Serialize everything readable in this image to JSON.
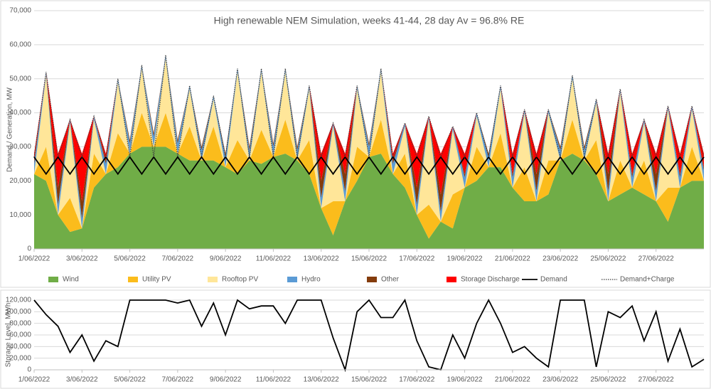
{
  "chart_data": [
    {
      "type": "area",
      "stacked": true,
      "title": "High renewable NEM Simulation, weeks 41-44, 28 day Av = 96.8% RE",
      "y_label": "Demand / Generation, MW",
      "grid": true,
      "legend": "bottom",
      "x": [
        0,
        0.5,
        1,
        1.5,
        2,
        2.5,
        3,
        3.5,
        4,
        4.5,
        5,
        5.5,
        6,
        6.5,
        7,
        7.5,
        8,
        8.5,
        9,
        9.5,
        10,
        10.5,
        11,
        11.5,
        12,
        12.5,
        13,
        13.5,
        14,
        14.5,
        15,
        15.5,
        16,
        16.5,
        17,
        17.5,
        18,
        18.5,
        19,
        19.5,
        20,
        20.5,
        21,
        21.5,
        22,
        22.5,
        23,
        23.5,
        24,
        24.5,
        25,
        25.5,
        26,
        26.5,
        27,
        27.5,
        28
      ],
      "xlim": [
        0,
        28
      ],
      "xticks": [
        {
          "value": 0,
          "label": "1/06/2022"
        },
        {
          "value": 2,
          "label": "3/06/2022"
        },
        {
          "value": 4,
          "label": "5/06/2022"
        },
        {
          "value": 6,
          "label": "7/06/2022"
        },
        {
          "value": 8,
          "label": "9/06/2022"
        },
        {
          "value": 10,
          "label": "11/06/2022"
        },
        {
          "value": 12,
          "label": "13/06/2022"
        },
        {
          "value": 14,
          "label": "15/06/2022"
        },
        {
          "value": 16,
          "label": "17/06/2022"
        },
        {
          "value": 18,
          "label": "19/06/2022"
        },
        {
          "value": 20,
          "label": "21/06/2022"
        },
        {
          "value": 22,
          "label": "23/06/2022"
        },
        {
          "value": 24,
          "label": "25/06/2022"
        },
        {
          "value": 26,
          "label": "27/06/2022"
        }
      ],
      "ylim": [
        0,
        70000
      ],
      "yticks": [
        0,
        {
          "value": 10000,
          "label": "10,000"
        },
        {
          "value": 20000,
          "label": "20,000"
        },
        {
          "value": 30000,
          "label": "30,000"
        },
        {
          "value": 40000,
          "label": "40,000"
        },
        {
          "value": 50000,
          "label": "50,000"
        },
        {
          "value": 60000,
          "label": "60,000"
        },
        {
          "value": 70000,
          "label": "70,000"
        }
      ],
      "series": [
        {
          "name": "Wind",
          "color": "#70ad47",
          "values": [
            22000,
            20000,
            10000,
            5000,
            6000,
            18000,
            22000,
            24000,
            28000,
            30000,
            30000,
            30000,
            28000,
            26000,
            26000,
            26000,
            24000,
            22000,
            26000,
            25000,
            27000,
            28000,
            26000,
            22000,
            12000,
            4000,
            14000,
            20000,
            27000,
            28000,
            22000,
            18000,
            10000,
            3000,
            8000,
            6000,
            18000,
            20000,
            24000,
            24000,
            18000,
            14000,
            14000,
            16000,
            26000,
            28000,
            26000,
            22000,
            14000,
            16000,
            18000,
            16000,
            14000,
            8000,
            18000,
            20000,
            20000
          ]
        },
        {
          "name": "Utility PV",
          "color": "#fbbc1c",
          "values": [
            0,
            10000,
            0,
            10000,
            0,
            10000,
            0,
            10000,
            0,
            10000,
            0,
            10000,
            0,
            10000,
            0,
            10000,
            0,
            10000,
            0,
            10000,
            0,
            10000,
            0,
            10000,
            0,
            10000,
            0,
            10000,
            0,
            10000,
            0,
            10000,
            0,
            10000,
            0,
            10000,
            0,
            10000,
            0,
            10000,
            0,
            10000,
            0,
            10000,
            0,
            10000,
            0,
            10000,
            0,
            10000,
            0,
            10000,
            0,
            10000,
            0,
            10000,
            0
          ]
        },
        {
          "name": "Rooftop PV",
          "color": "#ffe699",
          "values": [
            0,
            21000,
            0,
            22000,
            0,
            10000,
            0,
            15000,
            0,
            13000,
            0,
            16000,
            0,
            11000,
            0,
            8000,
            0,
            20000,
            0,
            17000,
            0,
            14000,
            0,
            15000,
            0,
            22000,
            0,
            17000,
            0,
            14000,
            0,
            8000,
            0,
            25000,
            0,
            19000,
            0,
            9000,
            0,
            13000,
            0,
            16000,
            0,
            14000,
            0,
            12000,
            0,
            11000,
            0,
            20000,
            0,
            11000,
            0,
            23000,
            0,
            11000,
            0
          ]
        },
        {
          "name": "Hydro",
          "color": "#5b9bd5",
          "values": [
            3000,
            1000,
            3000,
            1000,
            3000,
            1000,
            3000,
            1000,
            3000,
            1000,
            3000,
            1000,
            3000,
            1000,
            3000,
            1000,
            3000,
            1000,
            3000,
            1000,
            3000,
            1000,
            3000,
            1000,
            3000,
            1000,
            3000,
            1000,
            3000,
            1000,
            3000,
            1000,
            3000,
            1000,
            3000,
            1000,
            3000,
            1000,
            3000,
            1000,
            3000,
            1000,
            3000,
            1000,
            3000,
            1000,
            3000,
            1000,
            3000,
            1000,
            3000,
            1000,
            3000,
            1000,
            3000,
            1000,
            3000
          ]
        },
        {
          "name": "Other",
          "color": "#843c0c",
          "values": [
            1000,
            0,
            5000,
            0,
            5000,
            0,
            1000,
            0,
            1000,
            0,
            1000,
            0,
            1000,
            0,
            1000,
            0,
            1000,
            0,
            1000,
            0,
            1000,
            0,
            1000,
            0,
            5000,
            0,
            5000,
            0,
            1000,
            0,
            1000,
            0,
            5000,
            0,
            5000,
            0,
            1000,
            0,
            1000,
            0,
            1000,
            0,
            5000,
            0,
            1000,
            0,
            1000,
            0,
            5000,
            0,
            1000,
            0,
            5000,
            0,
            1000,
            0,
            1000
          ]
        },
        {
          "name": "Storage Discharge",
          "color": "#ff0000",
          "values": [
            2000,
            0,
            10000,
            0,
            14000,
            0,
            2000,
            0,
            0,
            0,
            0,
            0,
            0,
            0,
            0,
            0,
            0,
            0,
            0,
            0,
            0,
            0,
            0,
            0,
            8000,
            0,
            6000,
            0,
            0,
            0,
            2000,
            0,
            10000,
            0,
            12000,
            0,
            6000,
            0,
            0,
            0,
            6000,
            0,
            6000,
            0,
            0,
            0,
            0,
            0,
            6000,
            0,
            6000,
            0,
            6000,
            0,
            6000,
            0,
            4000
          ]
        },
        {
          "name": "Demand",
          "color": "#000000",
          "kind": "line",
          "values": [
            27000,
            22000,
            27000,
            22000,
            27000,
            22000,
            27000,
            22000,
            27000,
            22000,
            27000,
            22000,
            27000,
            22000,
            27000,
            22000,
            27000,
            22000,
            27000,
            22000,
            27000,
            22000,
            27000,
            22000,
            27000,
            22000,
            27000,
            22000,
            27000,
            22000,
            27000,
            22000,
            27000,
            22000,
            27000,
            22000,
            27000,
            22000,
            27000,
            22000,
            27000,
            22000,
            27000,
            22000,
            27000,
            22000,
            27000,
            22000,
            27000,
            22000,
            27000,
            22000,
            27000,
            22000,
            27000,
            22000,
            27000
          ]
        },
        {
          "name": "Demand+Charge",
          "color": "#404040",
          "kind": "line",
          "style": "dotted",
          "values": [
            27000,
            52000,
            27000,
            38000,
            27000,
            39000,
            27000,
            50000,
            27000,
            54000,
            27000,
            57000,
            27000,
            48000,
            27000,
            45000,
            27000,
            53000,
            27000,
            53000,
            27000,
            53000,
            27000,
            48000,
            27000,
            37000,
            27000,
            48000,
            27000,
            53000,
            27000,
            37000,
            27000,
            39000,
            27000,
            36000,
            27000,
            40000,
            27000,
            48000,
            27000,
            41000,
            27000,
            41000,
            27000,
            51000,
            27000,
            44000,
            27000,
            47000,
            27000,
            38000,
            27000,
            42000,
            27000,
            42000,
            27000
          ]
        }
      ]
    },
    {
      "type": "line",
      "y_label": "Storage Level, MWh",
      "grid": true,
      "x": [
        0,
        0.5,
        1,
        1.5,
        2,
        2.5,
        3,
        3.5,
        4,
        4.5,
        5,
        5.5,
        6,
        6.5,
        7,
        7.5,
        8,
        8.5,
        9,
        9.5,
        10,
        10.5,
        11,
        11.5,
        12,
        12.5,
        13,
        13.5,
        14,
        14.5,
        15,
        15.5,
        16,
        16.5,
        17,
        17.5,
        18,
        18.5,
        19,
        19.5,
        20,
        20.5,
        21,
        21.5,
        22,
        22.5,
        23,
        23.5,
        24,
        24.5,
        25,
        25.5,
        26,
        26.5,
        27,
        27.5,
        28
      ],
      "xlim": [
        0,
        28
      ],
      "xticks": [
        {
          "value": 0,
          "label": "1/06/2022"
        },
        {
          "value": 2,
          "label": "3/06/2022"
        },
        {
          "value": 4,
          "label": "5/06/2022"
        },
        {
          "value": 6,
          "label": "7/06/2022"
        },
        {
          "value": 8,
          "label": "9/06/2022"
        },
        {
          "value": 10,
          "label": "11/06/2022"
        },
        {
          "value": 12,
          "label": "13/06/2022"
        },
        {
          "value": 14,
          "label": "15/06/2022"
        },
        {
          "value": 16,
          "label": "17/06/2022"
        },
        {
          "value": 18,
          "label": "19/06/2022"
        },
        {
          "value": 20,
          "label": "21/06/2022"
        },
        {
          "value": 22,
          "label": "23/06/2022"
        },
        {
          "value": 24,
          "label": "25/06/2022"
        },
        {
          "value": 26,
          "label": "27/06/2022"
        }
      ],
      "ylim": [
        0,
        120000
      ],
      "yticks": [
        0,
        {
          "value": 20000,
          "label": "20,000"
        },
        {
          "value": 40000,
          "label": "40,000"
        },
        {
          "value": 60000,
          "label": "60,000"
        },
        {
          "value": 80000,
          "label": "80,000"
        },
        {
          "value": 100000,
          "label": "100,000"
        },
        {
          "value": 120000,
          "label": "120,000"
        }
      ],
      "series": [
        {
          "color": "#000000",
          "values": [
            120000,
            95000,
            75000,
            30000,
            60000,
            15000,
            50000,
            40000,
            120000,
            120000,
            120000,
            120000,
            115000,
            120000,
            75000,
            115000,
            60000,
            120000,
            105000,
            110000,
            110000,
            80000,
            120000,
            120000,
            120000,
            55000,
            0,
            100000,
            120000,
            90000,
            90000,
            120000,
            50000,
            5000,
            0,
            60000,
            20000,
            80000,
            120000,
            80000,
            30000,
            40000,
            20000,
            5000,
            120000,
            120000,
            120000,
            5000,
            100000,
            90000,
            110000,
            50000,
            100000,
            15000,
            70000,
            5000,
            18000
          ]
        }
      ]
    }
  ]
}
